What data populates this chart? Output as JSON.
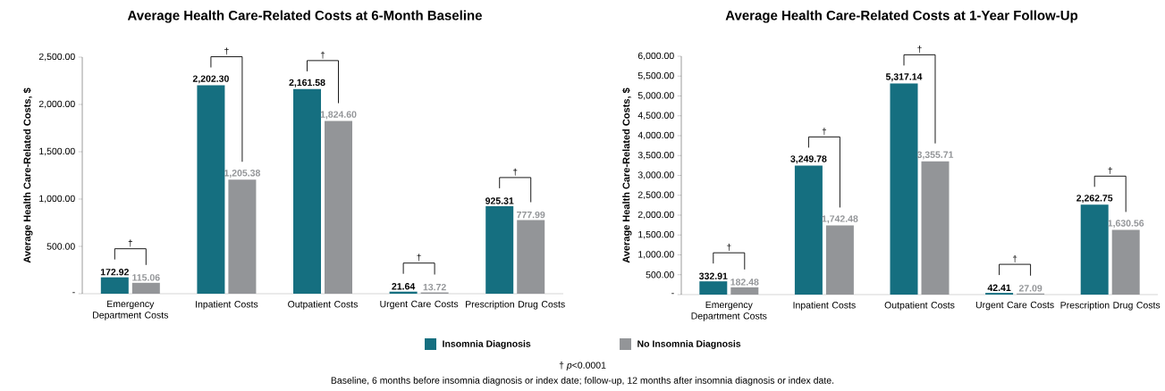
{
  "chart_data": [
    {
      "type": "bar",
      "title": "Average Health Care-Related Costs at 6-Month Baseline",
      "ylabel": "Average Health Care-Related Costs, $",
      "categories": [
        "Emergency Department Costs",
        "Inpatient Costs",
        "Outpatient Costs",
        "Urgent Care Costs",
        "Prescription Drug Costs"
      ],
      "series": [
        {
          "name": "Insomnia Diagnosis",
          "color": "#156f80",
          "values": [
            172.92,
            2202.3,
            2161.58,
            21.64,
            925.31
          ],
          "value_labels": [
            "172.92",
            "2,202.30",
            "2,161.58",
            "21.64",
            "925.31"
          ]
        },
        {
          "name": "No Insomnia Diagnosis",
          "color": "#939598",
          "values": [
            115.06,
            1205.38,
            1824.6,
            13.72,
            777.99
          ],
          "value_labels": [
            "115.06",
            "1,205.38",
            "1,824.60",
            "13.72",
            "777.99"
          ]
        }
      ],
      "ylim": [
        0,
        2500
      ],
      "yticks": [
        {
          "value": 0,
          "label": "-"
        },
        {
          "value": 500,
          "label": "500.00"
        },
        {
          "value": 1000,
          "label": "1,000.00"
        },
        {
          "value": 1500,
          "label": "1,500.00"
        },
        {
          "value": 2000,
          "label": "2,000.00"
        },
        {
          "value": 2500,
          "label": "2,500.00"
        }
      ],
      "legend": "bottom",
      "annotations": [
        "†",
        "†",
        "†",
        "†",
        "†",
        "† *p*<0.0001",
        "Baseline, 6 months before insomnia diagnosis or index date; follow-up, 12 months after insomnia diagnosis or index date."
      ]
    },
    {
      "type": "bar",
      "title": "Average Health Care-Related Costs at 1-Year Follow-Up",
      "ylabel": "Average Health Care-Related Costs, $",
      "categories": [
        "Emergency Department Costs",
        "Inpatient Costs",
        "Outpatient Costs",
        "Urgent Care Costs",
        "Prescription Drug Costs"
      ],
      "series": [
        {
          "color": "#156f80",
          "values": [
            332.91,
            3249.78,
            5317.14,
            42.41,
            2262.75
          ],
          "value_labels": [
            "332.91",
            "3,249.78",
            "5,317.14",
            "42.41",
            "2,262.75"
          ]
        },
        {
          "color": "#939598",
          "values": [
            182.48,
            1742.48,
            3355.71,
            27.09,
            1630.56
          ],
          "value_labels": [
            "182.48",
            "1,742.48",
            "3,355.71",
            "27.09",
            "1,630.56"
          ]
        }
      ],
      "ylim": [
        0,
        6000
      ],
      "yticks": [
        {
          "value": 0,
          "label": "-"
        },
        {
          "value": 500,
          "label": "500.00"
        },
        {
          "value": 1000,
          "label": "1,000.00"
        },
        {
          "value": 1500,
          "label": "1,500.00"
        },
        {
          "value": 2000,
          "label": "2,000.00"
        },
        {
          "value": 2500,
          "label": "2,500.00"
        },
        {
          "value": 3000,
          "label": "3,000.00"
        },
        {
          "value": 3500,
          "label": "3,500.00"
        },
        {
          "value": 4000,
          "label": "4,000.00"
        },
        {
          "value": 4500,
          "label": "4,500.00"
        },
        {
          "value": 5000,
          "label": "5,000.00"
        },
        {
          "value": 5500,
          "label": "5,500.00"
        },
        {
          "value": 6000,
          "label": "6,000.00"
        }
      ],
      "annotations": [
        "†",
        "†",
        "†",
        "†",
        "†"
      ]
    }
  ]
}
